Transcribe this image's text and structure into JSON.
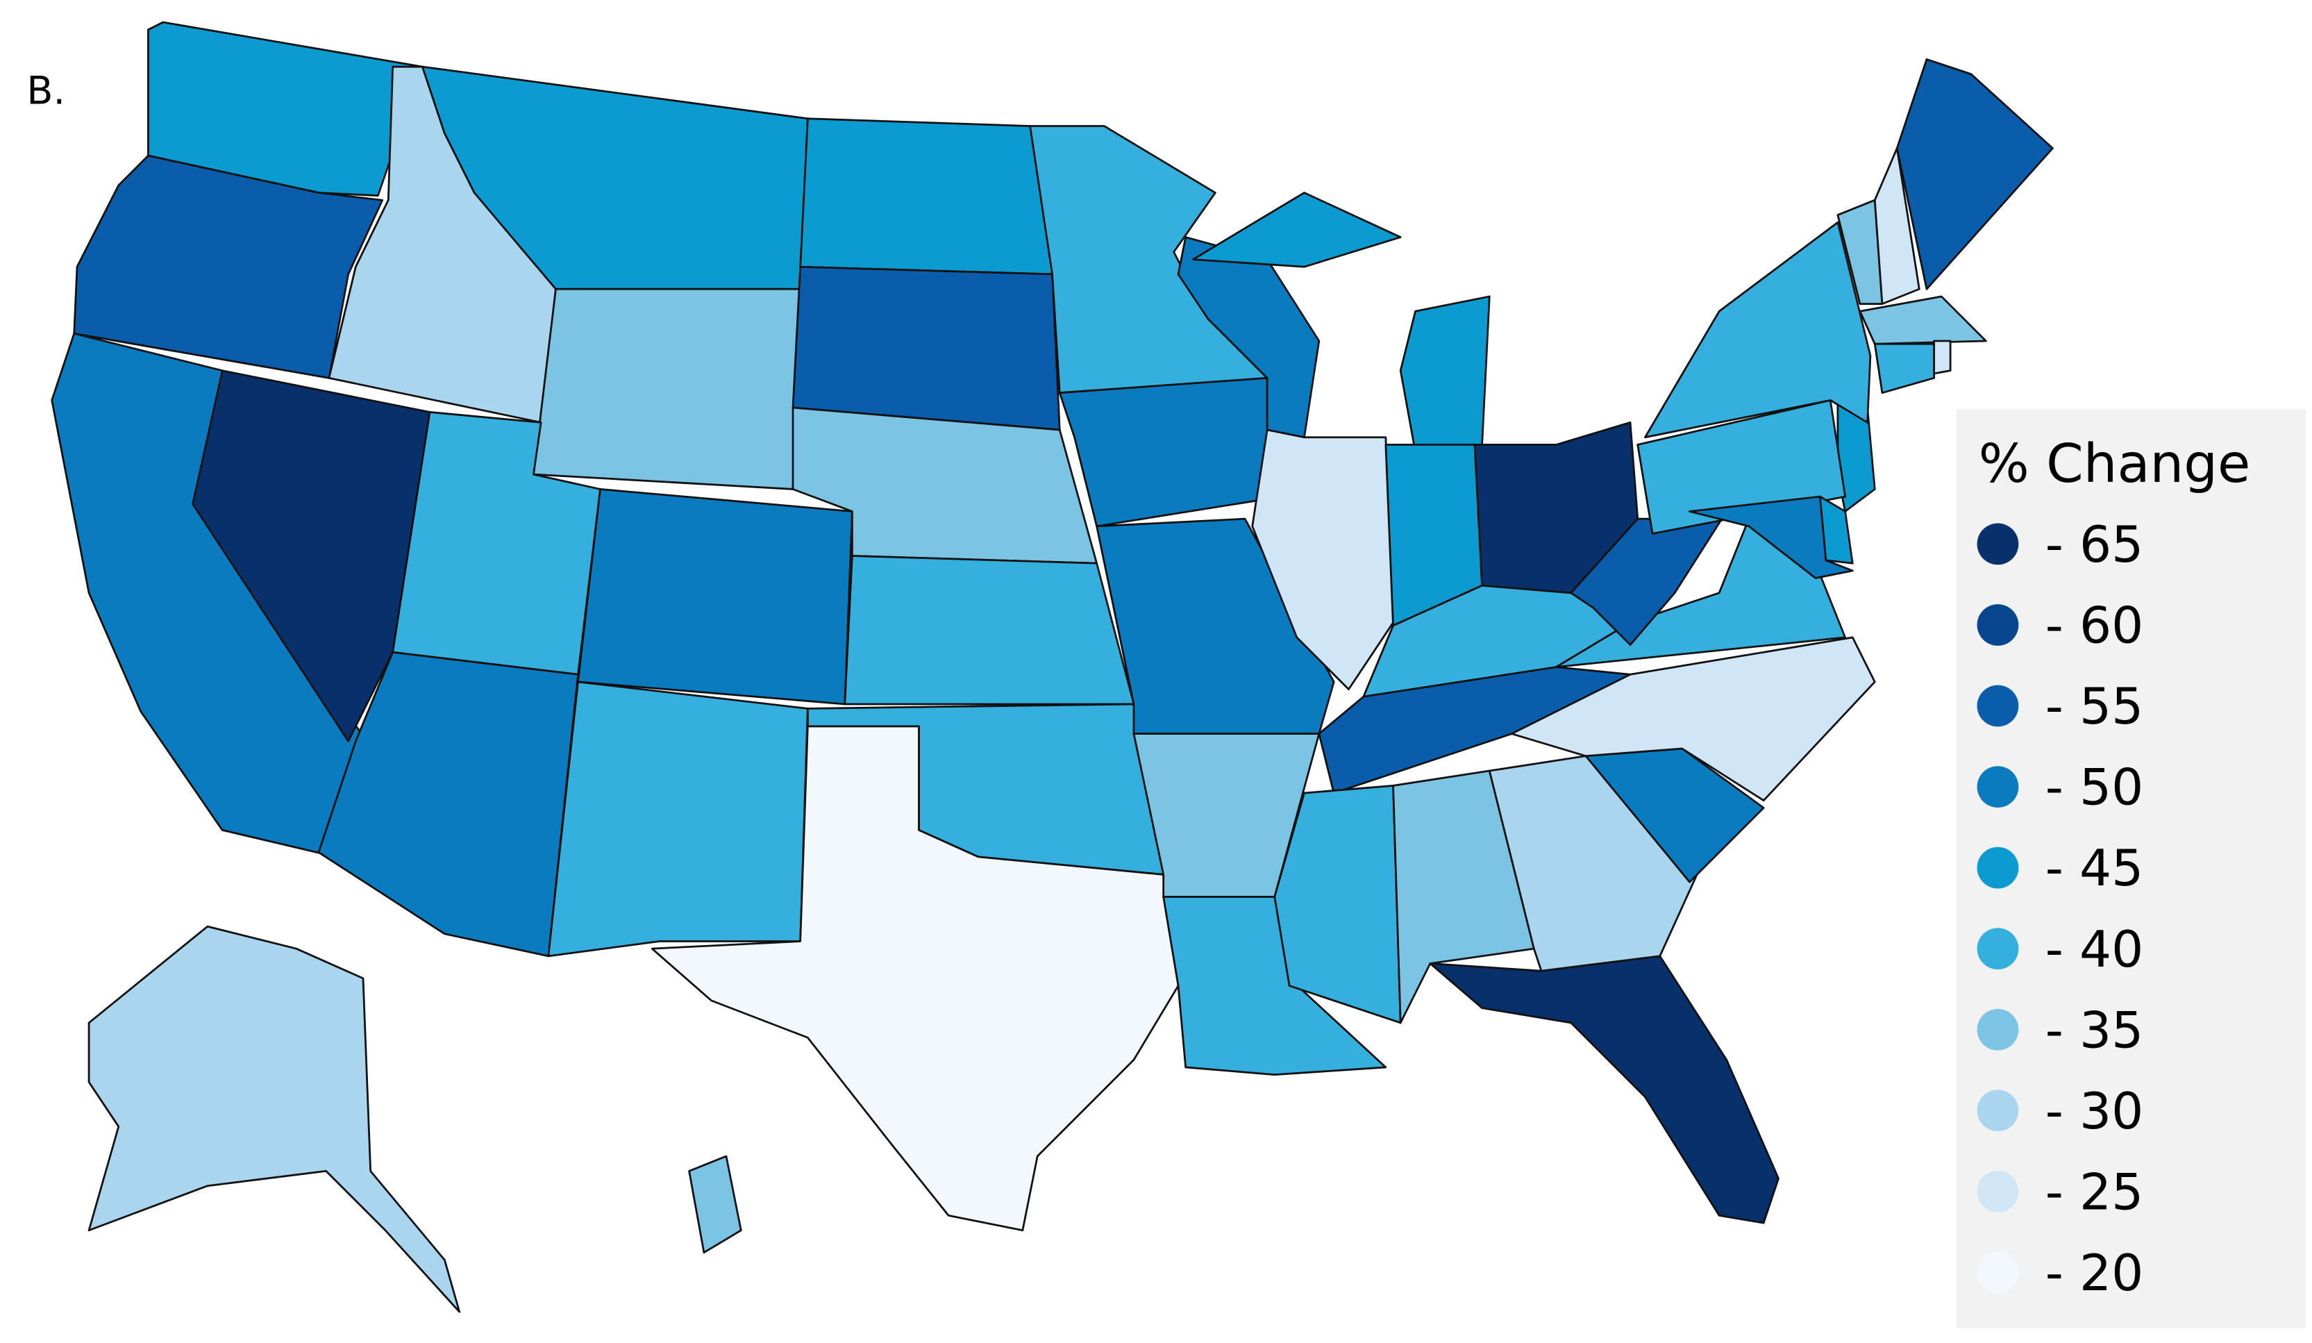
{
  "panel_label": "B.",
  "legend": {
    "title": "% Change",
    "items": [
      {
        "value": -65,
        "label": "- 65",
        "color": "#08306b"
      },
      {
        "value": -60,
        "label": "- 60",
        "color": "#08468f"
      },
      {
        "value": -55,
        "label": "- 55",
        "color": "#0a5dab"
      },
      {
        "value": -50,
        "label": "- 50",
        "color": "#0b7bc0"
      },
      {
        "value": -45,
        "label": "- 45",
        "color": "#0b9bd0"
      },
      {
        "value": -40,
        "label": "- 40",
        "color": "#35afdd"
      },
      {
        "value": -35,
        "label": "- 35",
        "color": "#7cc4e4"
      },
      {
        "value": -30,
        "label": "- 30",
        "color": "#a9d5ee"
      },
      {
        "value": -25,
        "label": "- 25",
        "color": "#d0e5f5"
      },
      {
        "value": -20,
        "label": "- 20",
        "color": "#f2f8fd"
      }
    ]
  },
  "region_values": [
    -45,
    -55,
    -50,
    -65,
    -30,
    -45,
    -35,
    -40,
    -50,
    -50,
    -40,
    -45,
    -55,
    -35,
    -40,
    -40,
    -20,
    -40,
    -50,
    -50,
    -35,
    -40,
    -50,
    -25,
    -45,
    -45,
    -45,
    -65,
    -40,
    -55,
    -40,
    -35,
    -30,
    -65,
    -50,
    -25,
    -40,
    -55,
    -40,
    -40,
    -45,
    -50,
    -35,
    -25,
    -35,
    -55,
    -40,
    -25,
    -30,
    -35,
    -50
  ]
}
